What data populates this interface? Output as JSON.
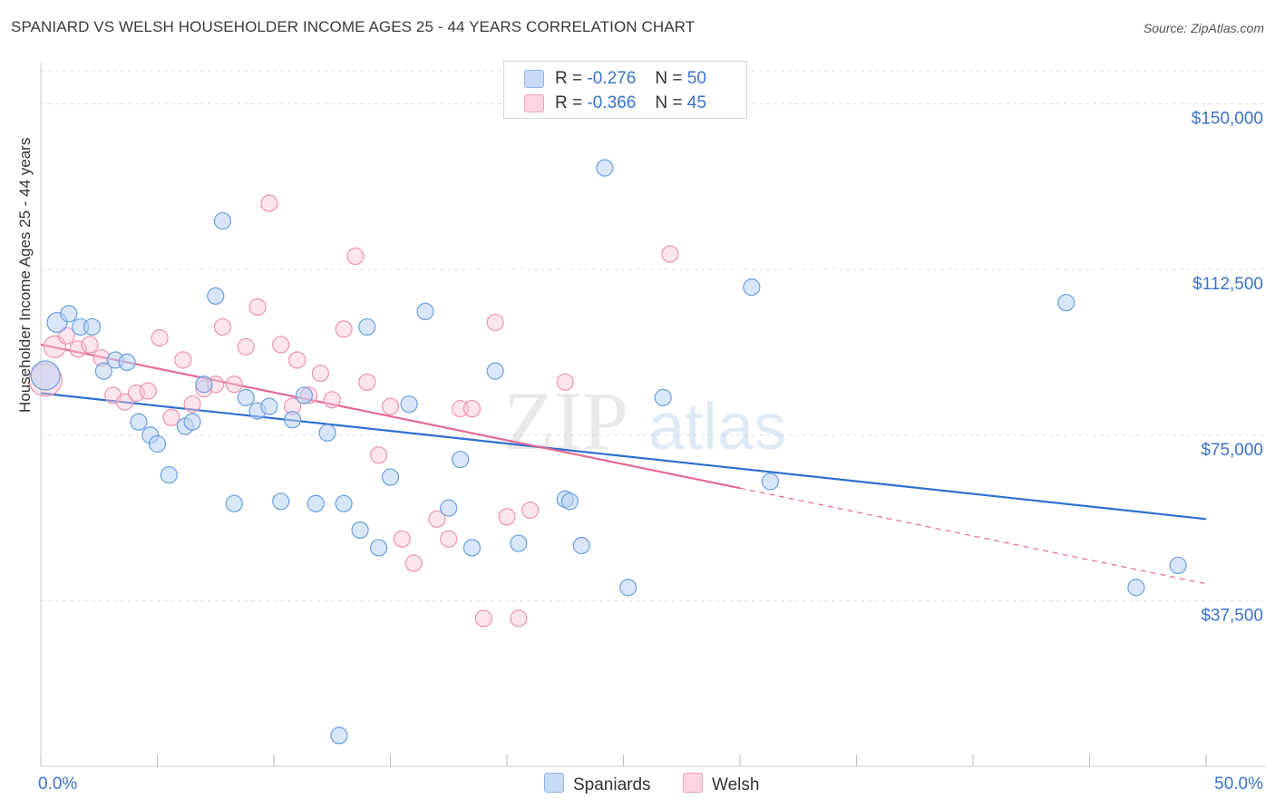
{
  "title": "SPANIARD VS WELSH HOUSEHOLDER INCOME AGES 25 - 44 YEARS CORRELATION CHART",
  "source": "Source: ZipAtlas.com",
  "watermark": {
    "zip": "ZIP",
    "atlas": "atlas"
  },
  "legend": {
    "rows": [
      {
        "r_label": "R =",
        "r_value": "-0.276",
        "n_label": "N =",
        "n_value": "50",
        "color": "#a9c8ef"
      },
      {
        "r_label": "R =",
        "r_value": "-0.366",
        "n_label": "N =",
        "n_value": "45",
        "color": "#f5b8cb"
      }
    ]
  },
  "bottom_legend": {
    "spaniards": "Spaniards",
    "welsh": "Welsh"
  },
  "chart_data": {
    "type": "scatter",
    "xlabel": "",
    "ylabel": "Householder Income Ages 25 - 44 years",
    "xlim": [
      0,
      50
    ],
    "ylim": [
      0,
      157500
    ],
    "x_tick_labels": [
      "0.0%",
      "50.0%"
    ],
    "y_ticks": [
      37500,
      75000,
      112500,
      150000
    ],
    "y_tick_labels": [
      "$37,500",
      "$75,000",
      "$112,500",
      "$150,000"
    ],
    "grid": true,
    "colors": {
      "spaniards": "#6a9fe0",
      "welsh": "#ef8fae",
      "spaniards_line": "#2f6fd0",
      "welsh_line": "#e36a94",
      "tick_label": "#3a73c9"
    },
    "series": [
      {
        "name": "Spaniards",
        "points": [
          [
            0.2,
            88500
          ],
          [
            0.7,
            100500
          ],
          [
            1.2,
            102500
          ],
          [
            1.7,
            99500
          ],
          [
            2.2,
            99500
          ],
          [
            2.7,
            89500
          ],
          [
            3.2,
            92000
          ],
          [
            3.7,
            91500
          ],
          [
            4.2,
            78000
          ],
          [
            4.7,
            75000
          ],
          [
            5.0,
            73000
          ],
          [
            5.5,
            66000
          ],
          [
            6.2,
            77000
          ],
          [
            6.5,
            78000
          ],
          [
            7.0,
            86500
          ],
          [
            7.5,
            106500
          ],
          [
            7.8,
            123500
          ],
          [
            8.3,
            59500
          ],
          [
            8.8,
            83500
          ],
          [
            9.3,
            80500
          ],
          [
            9.8,
            81500
          ],
          [
            10.3,
            60000
          ],
          [
            10.8,
            78500
          ],
          [
            11.3,
            84000
          ],
          [
            11.8,
            59500
          ],
          [
            12.3,
            75500
          ],
          [
            12.8,
            7000
          ],
          [
            13.0,
            59500
          ],
          [
            13.7,
            53500
          ],
          [
            14.0,
            99500
          ],
          [
            14.5,
            49500
          ],
          [
            15.0,
            65500
          ],
          [
            15.8,
            82000
          ],
          [
            16.5,
            103000
          ],
          [
            17.5,
            58500
          ],
          [
            18.0,
            69500
          ],
          [
            18.5,
            49500
          ],
          [
            19.5,
            89500
          ],
          [
            20.5,
            50500
          ],
          [
            22.5,
            60500
          ],
          [
            22.7,
            60000
          ],
          [
            23.2,
            50000
          ],
          [
            24.2,
            135500
          ],
          [
            25.2,
            40500
          ],
          [
            26.7,
            83500
          ],
          [
            30.5,
            108500
          ],
          [
            31.3,
            64500
          ],
          [
            44.0,
            105000
          ],
          [
            47.0,
            40500
          ],
          [
            48.8,
            45500
          ]
        ]
      },
      {
        "name": "Welsh",
        "points": [
          [
            0.2,
            87500
          ],
          [
            0.6,
            95000
          ],
          [
            1.1,
            97500
          ],
          [
            1.6,
            94500
          ],
          [
            2.1,
            95500
          ],
          [
            2.6,
            92500
          ],
          [
            3.1,
            84000
          ],
          [
            3.6,
            82500
          ],
          [
            4.1,
            84500
          ],
          [
            4.6,
            85000
          ],
          [
            5.1,
            97000
          ],
          [
            5.6,
            79000
          ],
          [
            6.1,
            92000
          ],
          [
            6.5,
            82000
          ],
          [
            7.0,
            85500
          ],
          [
            7.5,
            86500
          ],
          [
            7.8,
            99500
          ],
          [
            8.3,
            86500
          ],
          [
            8.8,
            95000
          ],
          [
            9.3,
            104000
          ],
          [
            9.8,
            127500
          ],
          [
            10.3,
            95500
          ],
          [
            10.8,
            81500
          ],
          [
            11.0,
            92000
          ],
          [
            11.5,
            84000
          ],
          [
            12.0,
            89000
          ],
          [
            12.5,
            83000
          ],
          [
            13.0,
            99000
          ],
          [
            13.5,
            115500
          ],
          [
            14.0,
            87000
          ],
          [
            14.5,
            70500
          ],
          [
            15.0,
            81500
          ],
          [
            15.5,
            51500
          ],
          [
            16.0,
            46000
          ],
          [
            17.0,
            56000
          ],
          [
            17.5,
            51500
          ],
          [
            18.0,
            81000
          ],
          [
            18.5,
            81000
          ],
          [
            19.0,
            33500
          ],
          [
            19.5,
            100500
          ],
          [
            20.0,
            56500
          ],
          [
            20.5,
            33500
          ],
          [
            21.0,
            58000
          ],
          [
            22.5,
            87000
          ],
          [
            27.0,
            116000
          ]
        ]
      }
    ],
    "trend_lines": [
      {
        "name": "Spaniards",
        "x": [
          0,
          50
        ],
        "y": [
          84500,
          56000
        ],
        "dashed_x": null
      },
      {
        "name": "Welsh",
        "x": [
          0,
          30.0
        ],
        "y": [
          95500,
          63000
        ],
        "dashed_x": [
          30.0,
          50
        ]
      }
    ]
  }
}
